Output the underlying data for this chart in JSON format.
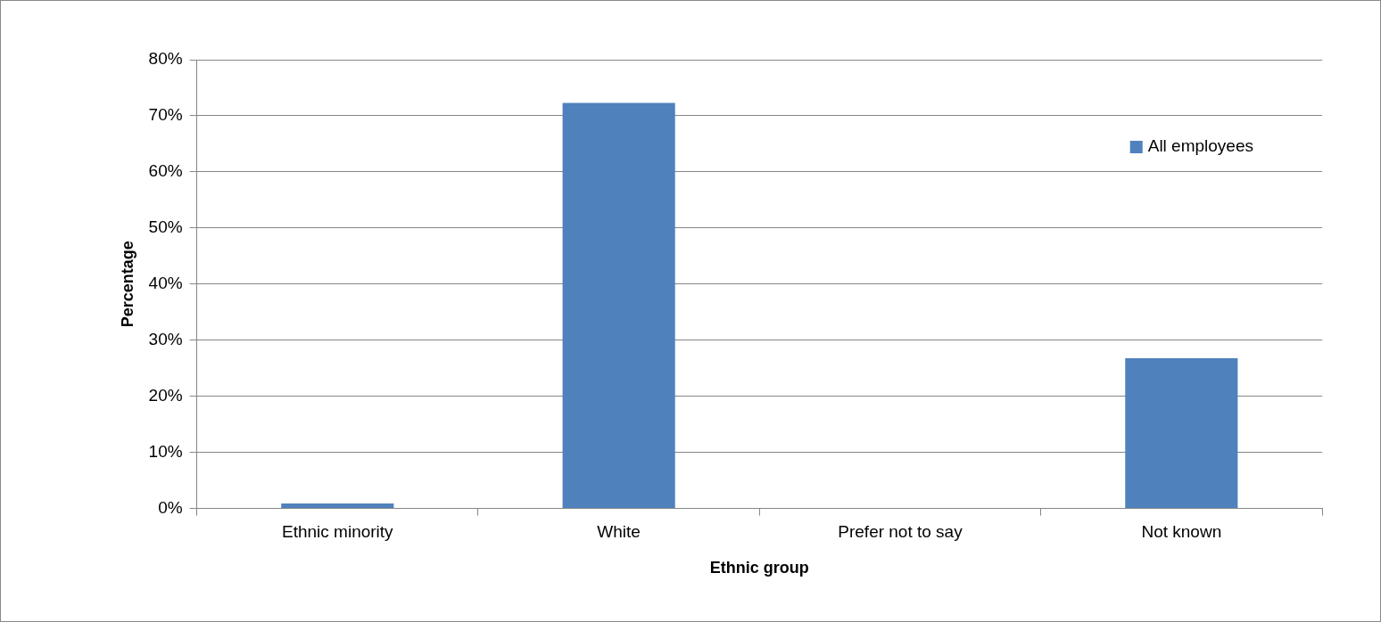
{
  "chart_data": {
    "type": "bar",
    "xlabel": "Ethnic group",
    "ylabel": "Percentage",
    "categories": [
      "Ethnic minority",
      "White",
      "Prefer not to say",
      "Not known"
    ],
    "series": [
      {
        "name": "All employees",
        "color": "#4f81bd",
        "values": [
          0.9,
          72.3,
          0,
          26.8
        ]
      }
    ],
    "ylim": [
      0,
      80
    ],
    "yticks": [
      {
        "value": 0,
        "label": "0%"
      },
      {
        "value": 10,
        "label": "10%"
      },
      {
        "value": 20,
        "label": "20%"
      },
      {
        "value": 30,
        "label": "30%"
      },
      {
        "value": 40,
        "label": "40%"
      },
      {
        "value": 50,
        "label": "50%"
      },
      {
        "value": 60,
        "label": "60%"
      },
      {
        "value": 70,
        "label": "70%"
      },
      {
        "value": 80,
        "label": "80%"
      }
    ],
    "grid": "y",
    "legend": "top right"
  }
}
